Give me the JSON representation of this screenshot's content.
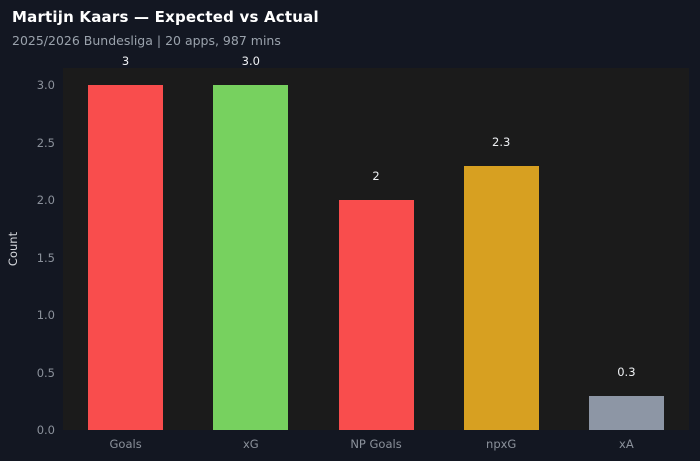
{
  "header": {
    "title": "Martijn Kaars — Expected vs Actual",
    "subtitle": "2025/2026 Bundesliga | 20 apps, 987 mins"
  },
  "chart_data": {
    "type": "bar",
    "title": "Martijn Kaars — Expected vs Actual",
    "subtitle": "2025/2026 Bundesliga | 20 apps, 987 mins",
    "categories": [
      "Goals",
      "xG",
      "NP Goals",
      "npxG",
      "xA"
    ],
    "values": [
      3,
      3.0,
      2,
      2.3,
      0.3
    ],
    "value_labels": [
      "3",
      "3.0",
      "2",
      "2.3",
      "0.3"
    ],
    "bar_colors": [
      "#f94d4d",
      "#77d15f",
      "#f94d4d",
      "#d7a021",
      "#8d96a5"
    ],
    "xlabel": "",
    "ylabel": "Count",
    "ylim": [
      0,
      3.15
    ],
    "yticks": [
      0.0,
      0.5,
      1.0,
      1.5,
      2.0,
      2.5,
      3.0
    ],
    "ytick_labels": [
      "0.0",
      "0.5",
      "1.0",
      "1.5",
      "2.0",
      "2.5",
      "3.0"
    ],
    "grid": false,
    "legend": false,
    "colors": {
      "background": "#131722",
      "plot_background": "#1b1b1b",
      "title": "#ffffff",
      "subtitle": "#9aa2ac",
      "ticks": "#8b919b",
      "value_labels": "#eef0f3",
      "ylabel": "#d4d7dc"
    }
  }
}
